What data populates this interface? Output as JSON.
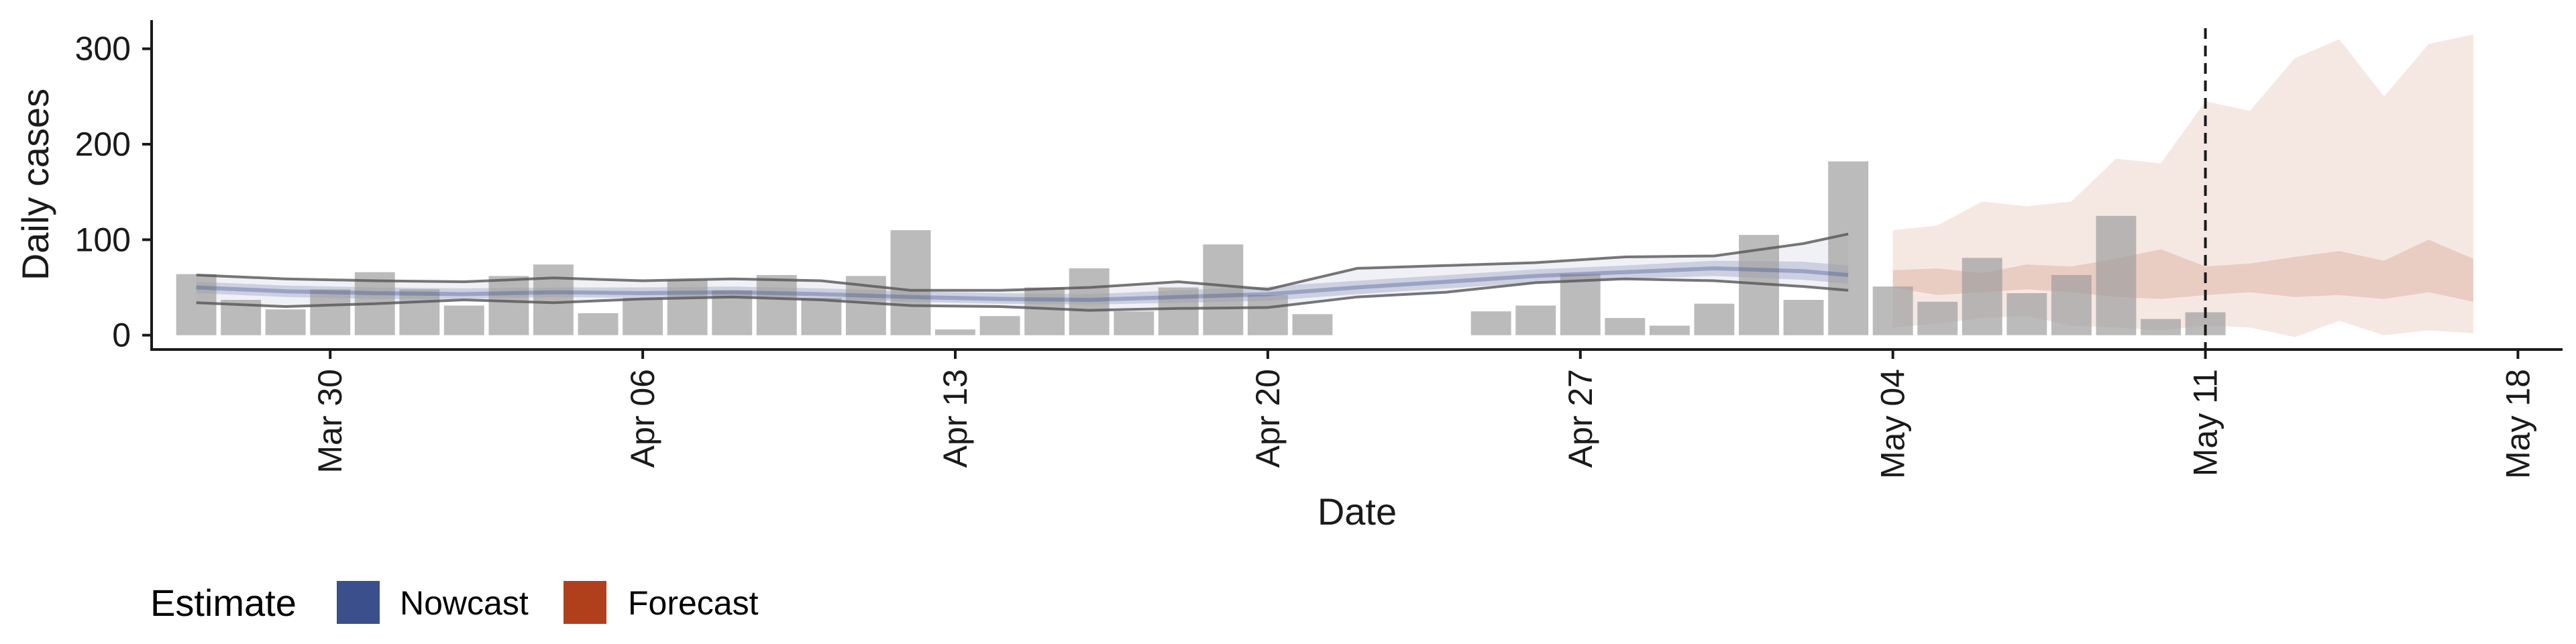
{
  "chart_data": {
    "type": "bar",
    "xlabel": "Date",
    "ylabel": "Daily cases",
    "ylim": [
      -15,
      330
    ],
    "xlim": [
      "2020-03-26",
      "2020-05-19"
    ],
    "yticks": [
      0,
      100,
      200,
      300
    ],
    "ytick_labels": [
      "0",
      "100",
      "200",
      "300"
    ],
    "xticks": [
      "2020-03-30",
      "2020-04-06",
      "2020-04-13",
      "2020-04-20",
      "2020-04-27",
      "2020-05-04",
      "2020-05-11",
      "2020-05-18"
    ],
    "xtick_labels": [
      "Mar 30",
      "Apr 06",
      "Apr 13",
      "Apr 20",
      "Apr 27",
      "May 04",
      "May 11",
      "May 18"
    ],
    "reference_line": {
      "date": "2020-05-11",
      "style": "dashed"
    },
    "bar_color": "#9e9e9e",
    "bars": {
      "dates": [
        "2020-03-27",
        "2020-03-28",
        "2020-03-29",
        "2020-03-30",
        "2020-03-31",
        "2020-04-01",
        "2020-04-02",
        "2020-04-03",
        "2020-04-04",
        "2020-04-05",
        "2020-04-06",
        "2020-04-07",
        "2020-04-08",
        "2020-04-09",
        "2020-04-10",
        "2020-04-11",
        "2020-04-12",
        "2020-04-13",
        "2020-04-14",
        "2020-04-15",
        "2020-04-16",
        "2020-04-17",
        "2020-04-18",
        "2020-04-19",
        "2020-04-20",
        "2020-04-21",
        "2020-04-25",
        "2020-04-26",
        "2020-04-27",
        "2020-04-28",
        "2020-04-29",
        "2020-04-30",
        "2020-05-01",
        "2020-05-02",
        "2020-05-03",
        "2020-05-04",
        "2020-05-05",
        "2020-05-06",
        "2020-05-07",
        "2020-05-08",
        "2020-05-09",
        "2020-05-10",
        "2020-05-11"
      ],
      "values": [
        64,
        37,
        27,
        48,
        66,
        48,
        31,
        62,
        74,
        23,
        39,
        58,
        47,
        63,
        39,
        62,
        110,
        6,
        20,
        50,
        70,
        25,
        50,
        95,
        42,
        22,
        25,
        31,
        64,
        18,
        10,
        33,
        105,
        37,
        182,
        51,
        35,
        81,
        44,
        63,
        125,
        17,
        24
      ]
    },
    "series": [
      {
        "name": "Nowcast",
        "color": "#3b4f8c",
        "dates": [
          "2020-03-27",
          "2020-03-29",
          "2020-03-31",
          "2020-04-02",
          "2020-04-04",
          "2020-04-06",
          "2020-04-08",
          "2020-04-10",
          "2020-04-12",
          "2020-04-14",
          "2020-04-16",
          "2020-04-18",
          "2020-04-20",
          "2020-04-22",
          "2020-04-24",
          "2020-04-26",
          "2020-04-28",
          "2020-04-30",
          "2020-05-02",
          "2020-05-03"
        ],
        "median": [
          50,
          46,
          44,
          43,
          45,
          44,
          45,
          43,
          40,
          38,
          37,
          40,
          43,
          50,
          56,
          62,
          66,
          70,
          67,
          63
        ],
        "inner_lower": [
          44,
          40,
          38,
          38,
          40,
          39,
          40,
          38,
          35,
          33,
          32,
          34,
          36,
          43,
          49,
          55,
          59,
          62,
          58,
          54
        ],
        "inner_upper": [
          56,
          52,
          50,
          49,
          50,
          50,
          51,
          49,
          46,
          44,
          43,
          47,
          51,
          57,
          63,
          69,
          73,
          78,
          77,
          73
        ],
        "lower": [
          34,
          30,
          33,
          37,
          34,
          38,
          40,
          37,
          31,
          30,
          26,
          28,
          29,
          40,
          45,
          55,
          59,
          57,
          51,
          47
        ],
        "upper": [
          63,
          59,
          57,
          56,
          60,
          57,
          59,
          57,
          47,
          47,
          50,
          56,
          48,
          70,
          73,
          76,
          82,
          83,
          96,
          106
        ]
      },
      {
        "name": "Forecast",
        "color": "#b0401b",
        "dates": [
          "2020-05-04",
          "2020-05-05",
          "2020-05-06",
          "2020-05-07",
          "2020-05-08",
          "2020-05-09",
          "2020-05-10",
          "2020-05-11",
          "2020-05-12",
          "2020-05-13",
          "2020-05-14",
          "2020-05-15",
          "2020-05-16",
          "2020-05-17"
        ],
        "inner_lower": [
          50,
          42,
          45,
          48,
          45,
          40,
          38,
          42,
          45,
          40,
          42,
          38,
          45,
          35
        ],
        "inner_upper": [
          68,
          70,
          65,
          74,
          72,
          80,
          90,
          72,
          75,
          82,
          88,
          78,
          100,
          80
        ],
        "lower": [
          8,
          12,
          18,
          20,
          10,
          8,
          5,
          10,
          8,
          -2,
          15,
          0,
          5,
          2
        ],
        "upper": [
          110,
          115,
          140,
          135,
          140,
          185,
          180,
          245,
          235,
          290,
          310,
          250,
          305,
          315
        ]
      }
    ],
    "legend": {
      "title": "Estimate",
      "position": "bottom-left",
      "entries": [
        {
          "label": "Nowcast",
          "color": "#3b4f8c"
        },
        {
          "label": "Forecast",
          "color": "#b0401b"
        }
      ]
    }
  }
}
